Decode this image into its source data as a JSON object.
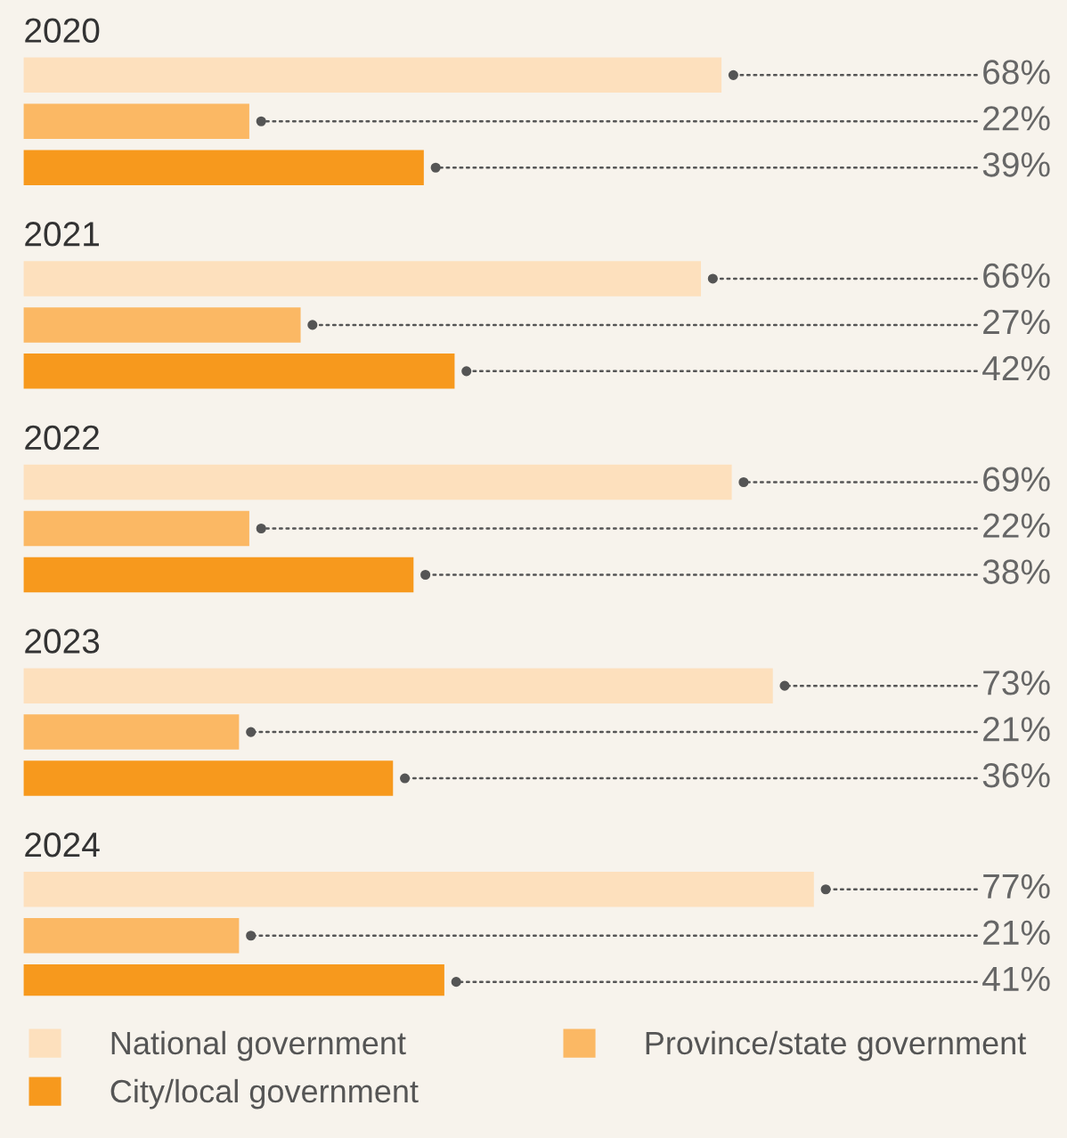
{
  "chart_data": {
    "type": "bar",
    "orientation": "horizontal",
    "categories": [
      "2020",
      "2021",
      "2022",
      "2023",
      "2024"
    ],
    "series": [
      {
        "name": "National government",
        "color": "#fde0bd",
        "values": [
          68,
          66,
          69,
          73,
          77
        ],
        "value_labels": [
          "68%",
          "66%",
          "69%",
          "73%",
          "77%"
        ]
      },
      {
        "name": "Province/state government",
        "color": "#fbb864",
        "values": [
          22,
          27,
          22,
          21,
          21
        ],
        "value_labels": [
          "22%",
          "27%",
          "22%",
          "21%",
          "21%"
        ]
      },
      {
        "name": "City/local government",
        "color": "#f7991d",
        "values": [
          39,
          42,
          38,
          36,
          41
        ],
        "value_labels": [
          "39%",
          "42%",
          "38%",
          "36%",
          "41%"
        ]
      }
    ],
    "legend": "bottom"
  }
}
